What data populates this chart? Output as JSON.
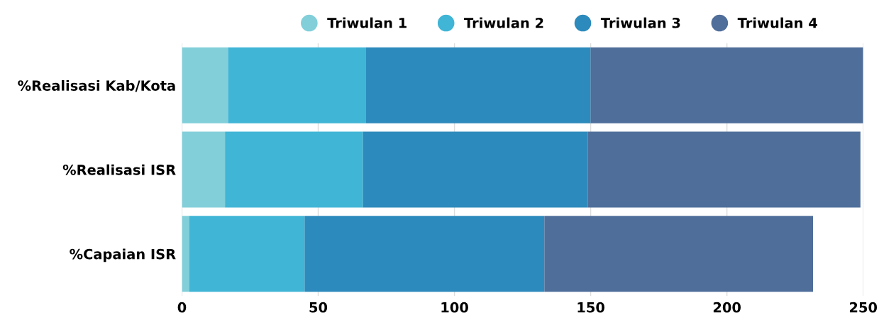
{
  "chart_data": {
    "type": "bar",
    "orientation": "horizontal",
    "stacked": true,
    "categories": [
      "%Realisasi Kab/Kota",
      "%Realisasi ISR",
      "%Capaian ISR"
    ],
    "series": [
      {
        "name": "Triwulan 1",
        "color": "#82cfd9",
        "values": [
          16.9,
          15.8,
          2.6
        ]
      },
      {
        "name": "Triwulan 2",
        "color": "#40b5d5",
        "values": [
          50.5,
          50.6,
          42.4
        ]
      },
      {
        "name": "Triwulan 3",
        "color": "#2d8abc",
        "values": [
          82.6,
          82.6,
          88.0
        ]
      },
      {
        "name": "Triwulan 4",
        "color": "#4f6e9a",
        "values": [
          100.0,
          100.0,
          98.6
        ]
      }
    ],
    "xlim": [
      0,
      250
    ],
    "xticks": [
      0,
      50,
      100,
      150,
      200,
      250
    ],
    "grid": "x",
    "legend": "top"
  }
}
